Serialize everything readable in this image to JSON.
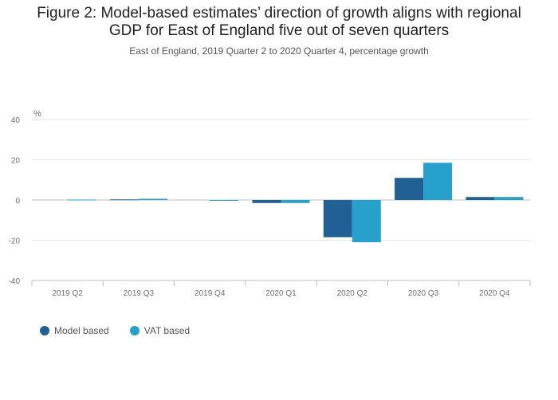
{
  "title_line1": "Figure 2: Model-based estimates’ direction of growth aligns with regional",
  "title_line2": "GDP for East of England five out of seven quarters",
  "subtitle": "East of England, 2019 Quarter 2 to 2020 Quarter 4, percentage growth",
  "chart_data": {
    "type": "bar",
    "title": "Figure 2: Model-based estimates’ direction of growth aligns with regional GDP for East of England five out of seven quarters",
    "subtitle": "East of England, 2019 Quarter 2 to 2020 Quarter 4, percentage growth",
    "ylabel": "%",
    "xlabel": "",
    "ylim": [
      -40,
      40
    ],
    "yticks": [
      40,
      20,
      0,
      -20,
      -40
    ],
    "grid": true,
    "legend_position": "bottom-left",
    "categories": [
      "2019 Q2",
      "2019 Q3",
      "2019 Q4",
      "2020 Q1",
      "2020 Q2",
      "2020 Q3",
      "2020 Q4"
    ],
    "series": [
      {
        "name": "Model based",
        "color": "#206095",
        "values": [
          0.0,
          0.3,
          0.0,
          -1.5,
          -18.5,
          11.0,
          1.5
        ]
      },
      {
        "name": "VAT based",
        "color": "#27a0cc",
        "values": [
          0.2,
          0.6,
          -0.4,
          -1.5,
          -21.0,
          18.5,
          1.5
        ]
      }
    ]
  }
}
